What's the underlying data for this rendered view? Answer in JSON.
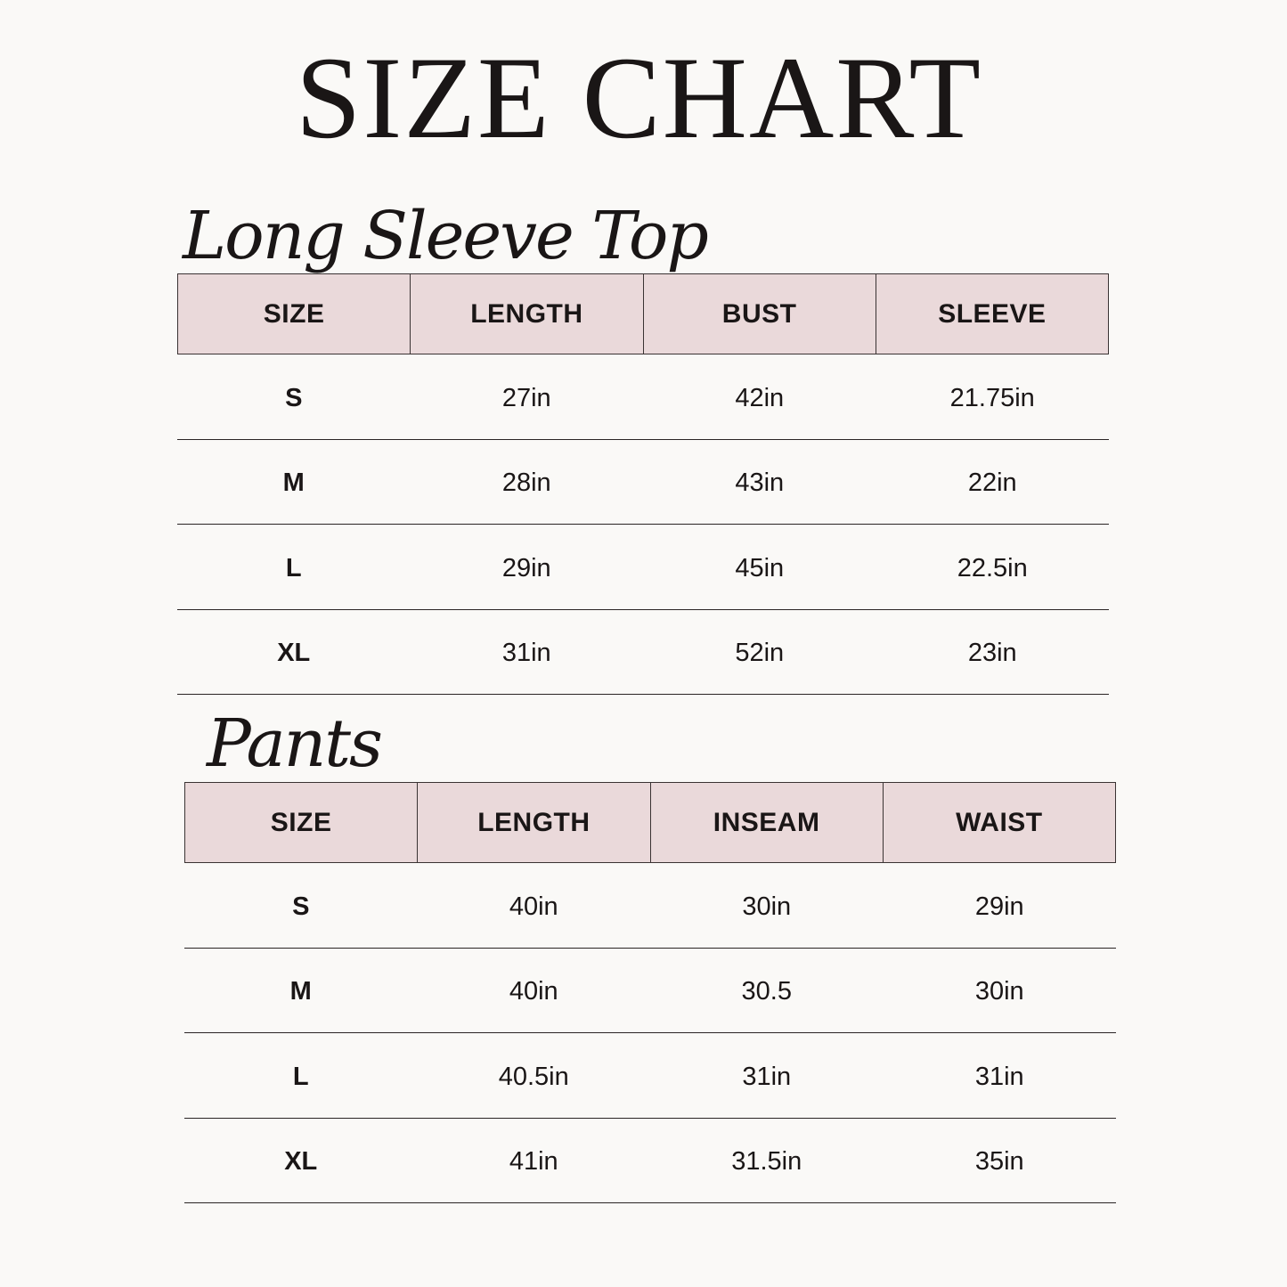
{
  "title": "SIZE CHART",
  "colors": {
    "background": "#faf9f7",
    "header_fill": "#ead9da",
    "text": "#1a1616"
  },
  "tables": [
    {
      "heading": "Long Sleeve Top",
      "columns": [
        "SIZE",
        "LENGTH",
        "BUST",
        "SLEEVE"
      ],
      "rows": [
        [
          "S",
          "27in",
          "42in",
          "21.75in"
        ],
        [
          "M",
          "28in",
          "43in",
          "22in"
        ],
        [
          "L",
          "29in",
          "45in",
          "22.5in"
        ],
        [
          "XL",
          "31in",
          "52in",
          "23in"
        ]
      ]
    },
    {
      "heading": "Pants",
      "columns": [
        "SIZE",
        "LENGTH",
        "INSEAM",
        "WAIST"
      ],
      "rows": [
        [
          "S",
          "40in",
          "30in",
          "29in"
        ],
        [
          "M",
          "40in",
          "30.5",
          "30in"
        ],
        [
          "L",
          "40.5in",
          "31in",
          "31in"
        ],
        [
          "XL",
          "41in",
          "31.5in",
          "35in"
        ]
      ]
    }
  ]
}
